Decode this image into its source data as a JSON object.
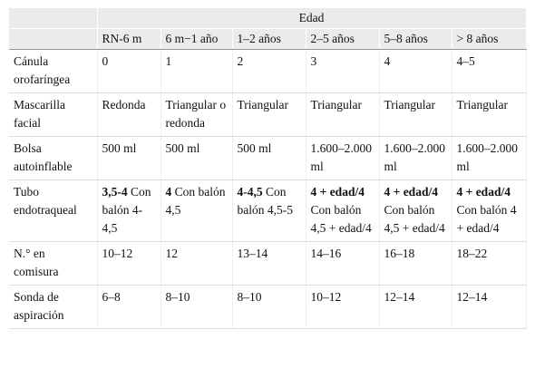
{
  "table": {
    "group_header": "Edad",
    "columns": [
      "RN-6 m",
      "6 m−1 año",
      "1–2 años",
      "2–5 años",
      "5–8 años",
      "> 8 años"
    ],
    "rows": [
      {
        "label": "Cánula orofaríngea",
        "cells": [
          "0",
          "1",
          "2",
          "3",
          "4",
          "4–5"
        ]
      },
      {
        "label": "Mascarilla facial",
        "cells": [
          "Redonda",
          "Triangular o redonda",
          "Triangular",
          "Triangular",
          "Triangular",
          "Triangular"
        ]
      },
      {
        "label": "Bolsa autoinflable",
        "cells": [
          "500 ml",
          "500 ml",
          "500 ml",
          "1.600–2.000 ml",
          "1.600–2.000 ml",
          "1.600–2.000 ml"
        ]
      },
      {
        "label": "Tubo endotraqueal",
        "cells": [
          {
            "bold": "3,5-4",
            "text": "Con balón 4-4,5"
          },
          {
            "bold": "4",
            "text": "Con balón 4,5"
          },
          {
            "bold": "4-4,5",
            "text": "Con balón 4,5-5"
          },
          {
            "bold": "4 + edad/4",
            "text": "Con balón 4,5 + edad/4"
          },
          {
            "bold": "4 + edad/4",
            "text": "Con balón 4,5 + edad/4"
          },
          {
            "bold": "4 + edad/4",
            "text": "Con balón 4 + edad/4"
          }
        ]
      },
      {
        "label": "N.° en comisura",
        "cells": [
          "10–12",
          "12",
          "13–14",
          "14–16",
          "16–18",
          "18–22"
        ]
      },
      {
        "label": "Sonda de aspiración",
        "cells": [
          "6–8",
          "8–10",
          "8–10",
          "10–12",
          "12–14",
          "12–14"
        ]
      }
    ]
  }
}
